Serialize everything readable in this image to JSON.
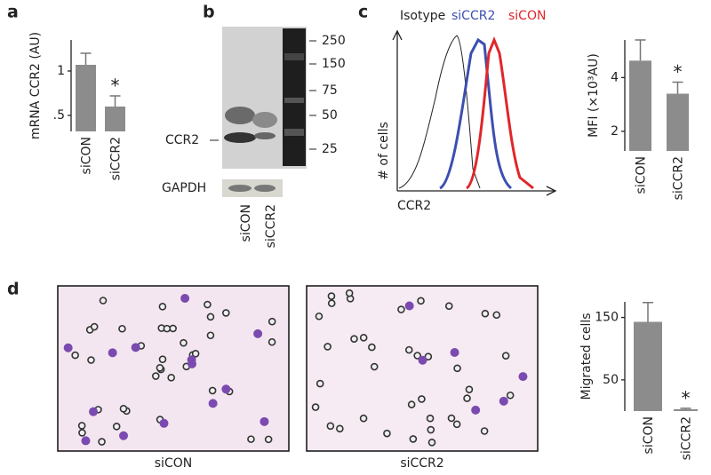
{
  "panels": [
    "a",
    "b",
    "c",
    "d"
  ],
  "blot": {
    "band_label": "CCR2",
    "loading_label": "GAPDH",
    "lanes": [
      "siCON",
      "siCCR2"
    ],
    "markers": [
      250,
      150,
      75,
      50,
      25
    ]
  },
  "flow": {
    "legend": [
      "Isotype",
      "siCCR2",
      "siCON"
    ],
    "ylabel": "# of cells",
    "xlabel": "CCR2"
  },
  "micrographs": {
    "labels": [
      "siCON",
      "siCCR2"
    ]
  },
  "chart_data": [
    {
      "type": "bar",
      "ylabel": "mRNA CCR2 (AU)",
      "categories": [
        "siCON",
        "siCCR2"
      ],
      "values": [
        1.07,
        0.6
      ],
      "errors": [
        0.13,
        0.12
      ],
      "color": "#8c8c8c",
      "ylim": [
        0.32,
        1.35
      ],
      "yticks": [
        {
          "value": 0.5,
          "label": ".5"
        },
        1
      ],
      "annotations": [
        {
          "category": "siCCR2",
          "text": "*"
        }
      ]
    },
    {
      "type": "bar",
      "ylabel": "MFI (×10³AU)",
      "categories": [
        "siCON",
        "siCCR2"
      ],
      "values": [
        4.63,
        3.4
      ],
      "errors": [
        0.77,
        0.43
      ],
      "color": "#8c8c8c",
      "ylim": [
        1.27,
        5.4
      ],
      "yticks": [
        2,
        4
      ],
      "annotations": [
        {
          "category": "siCCR2",
          "text": "*"
        }
      ]
    },
    {
      "type": "bar",
      "ylabel": "Migrated cells",
      "categories": [
        "siCON",
        "siCCR2"
      ],
      "values": [
        143,
        3
      ],
      "errors": [
        31,
        1.5
      ],
      "color": "#8c8c8c",
      "ylim": [
        0,
        175
      ],
      "yticks": [
        50,
        150
      ],
      "annotations": [
        {
          "category": "siCCR2",
          "text": "*"
        }
      ]
    }
  ]
}
